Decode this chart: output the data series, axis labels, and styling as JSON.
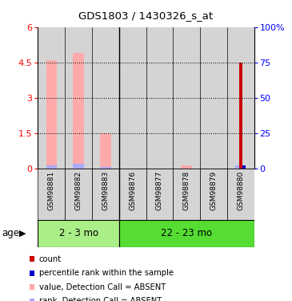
{
  "title": "GDS1803 / 1430326_s_at",
  "samples": [
    "GSM98881",
    "GSM98882",
    "GSM98883",
    "GSM98876",
    "GSM98877",
    "GSM98878",
    "GSM98879",
    "GSM98880"
  ],
  "n_group1": 3,
  "n_group2": 5,
  "value_absent": [
    4.6,
    4.9,
    1.5,
    0.0,
    0.0,
    0.15,
    0.0,
    0.0
  ],
  "rank_absent": [
    0.12,
    0.2,
    0.08,
    0.0,
    0.0,
    0.0,
    0.0,
    0.14
  ],
  "count": [
    0.0,
    0.0,
    0.0,
    0.0,
    0.0,
    0.0,
    0.0,
    4.5
  ],
  "percentile": [
    0.0,
    0.0,
    0.0,
    0.0,
    0.0,
    0.0,
    0.0,
    0.14
  ],
  "ylim": [
    0,
    6
  ],
  "yticks": [
    0,
    1.5,
    3,
    4.5,
    6
  ],
  "ytick_labels": [
    "0",
    "1.5",
    "3",
    "4.5",
    "6"
  ],
  "y2lim": [
    0,
    100
  ],
  "y2ticks": [
    0,
    25,
    50,
    75,
    100
  ],
  "y2tick_labels": [
    "0",
    "25",
    "50",
    "75",
    "100%"
  ],
  "color_count": "#cc0000",
  "color_percentile": "#0000cc",
  "color_value_absent": "#ffaaaa",
  "color_rank_absent": "#aaaaff",
  "cell_color_odd": "#d4d4d4",
  "cell_color_even": "#e8e8e8",
  "group1_label": "2 - 3 mo",
  "group2_label": "22 - 23 mo",
  "group1_color": "#aaee88",
  "group2_color": "#55dd33",
  "bar_width": 0.4,
  "narrow_bar_width": 0.12
}
